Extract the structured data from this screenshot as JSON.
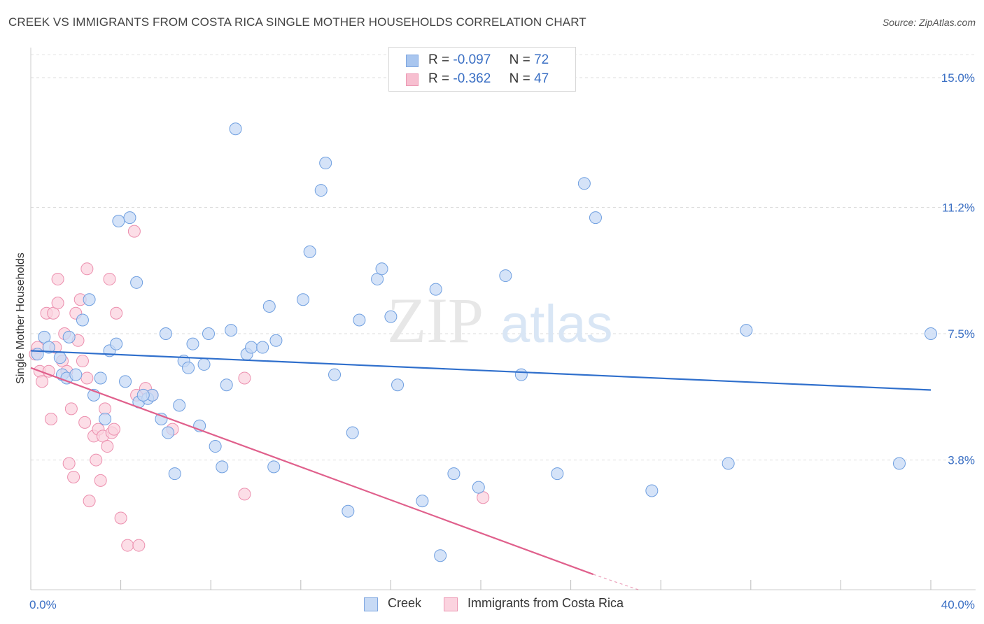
{
  "title": "CREEK VS IMMIGRANTS FROM COSTA RICA SINGLE MOTHER HOUSEHOLDS CORRELATION CHART",
  "source": "Source: ZipAtlas.com",
  "watermark": {
    "zip": "ZIP",
    "atlas": "atlas"
  },
  "legend": {
    "r_label": "R =",
    "n_label": "N =",
    "rows": [
      {
        "r": "-0.097",
        "n": "72",
        "color": "#a9c6ef",
        "border": "#7ea6e0"
      },
      {
        "r": "-0.362",
        "n": "47",
        "color": "#f7bfd0",
        "border": "#ec98b3"
      }
    ]
  },
  "bottom_legend": [
    {
      "label": "Creek",
      "color": "#c7daf5",
      "border": "#7ea6e0"
    },
    {
      "label": "Immigrants from Costa Rica",
      "color": "#fbd3df",
      "border": "#ec98b3"
    }
  ],
  "chart_data": {
    "type": "scatter",
    "title": "CREEK VS IMMIGRANTS FROM COSTA RICA SINGLE MOTHER HOUSEHOLDS CORRELATION CHART",
    "xlabel": "",
    "ylabel": "Single Mother Households",
    "xlim": [
      0,
      40
    ],
    "ylim": [
      0,
      15.8
    ],
    "x_tick_labels": [
      "0.0%",
      "40.0%"
    ],
    "y_ticks": [
      3.8,
      7.5,
      11.2,
      15.0
    ],
    "y_tick_labels": [
      "3.8%",
      "7.5%",
      "11.2%",
      "15.0%"
    ],
    "grid": true,
    "legend_position": "top-center",
    "series": [
      {
        "name": "Creek",
        "color": "#6f9fe0",
        "fill": "#c7daf5",
        "line_color": "#2f6fcc",
        "trend": {
          "x": [
            0,
            40
          ],
          "y": [
            7.0,
            5.85
          ]
        },
        "points": [
          [
            0.3,
            6.9
          ],
          [
            0.6,
            7.4
          ],
          [
            0.8,
            7.1
          ],
          [
            1.3,
            6.8
          ],
          [
            1.4,
            6.3
          ],
          [
            1.6,
            6.2
          ],
          [
            1.7,
            7.4
          ],
          [
            2.0,
            6.3
          ],
          [
            2.3,
            7.9
          ],
          [
            2.6,
            8.5
          ],
          [
            2.8,
            5.7
          ],
          [
            3.1,
            6.2
          ],
          [
            3.3,
            5.0
          ],
          [
            3.5,
            7.0
          ],
          [
            3.8,
            7.2
          ],
          [
            4.2,
            6.1
          ],
          [
            3.9,
            10.8
          ],
          [
            4.4,
            10.9
          ],
          [
            4.7,
            9.0
          ],
          [
            4.8,
            5.5
          ],
          [
            5.2,
            5.6
          ],
          [
            5.4,
            5.7
          ],
          [
            5.8,
            5.0
          ],
          [
            6.0,
            7.5
          ],
          [
            6.1,
            4.6
          ],
          [
            6.4,
            3.4
          ],
          [
            6.6,
            5.4
          ],
          [
            6.8,
            6.7
          ],
          [
            7.0,
            6.5
          ],
          [
            7.2,
            7.2
          ],
          [
            7.5,
            4.8
          ],
          [
            7.7,
            6.6
          ],
          [
            7.9,
            7.5
          ],
          [
            8.2,
            4.2
          ],
          [
            8.5,
            3.6
          ],
          [
            8.7,
            6.0
          ],
          [
            8.9,
            7.6
          ],
          [
            9.1,
            13.5
          ],
          [
            9.6,
            6.9
          ],
          [
            9.8,
            7.1
          ],
          [
            10.3,
            7.1
          ],
          [
            10.6,
            8.3
          ],
          [
            10.8,
            3.6
          ],
          [
            10.9,
            7.3
          ],
          [
            12.4,
            9.9
          ],
          [
            12.9,
            11.7
          ],
          [
            13.1,
            12.5
          ],
          [
            13.5,
            6.3
          ],
          [
            14.3,
            4.6
          ],
          [
            14.6,
            7.9
          ],
          [
            15.4,
            9.1
          ],
          [
            15.6,
            9.4
          ],
          [
            16.0,
            8.0
          ],
          [
            16.3,
            6.0
          ],
          [
            14.1,
            2.3
          ],
          [
            17.4,
            2.6
          ],
          [
            18.0,
            8.8
          ],
          [
            18.2,
            1.0
          ],
          [
            18.8,
            3.4
          ],
          [
            19.9,
            3.0
          ],
          [
            21.1,
            9.2
          ],
          [
            21.8,
            6.3
          ],
          [
            23.4,
            3.4
          ],
          [
            24.6,
            11.9
          ],
          [
            25.1,
            10.9
          ],
          [
            27.6,
            2.9
          ],
          [
            31.0,
            3.7
          ],
          [
            31.8,
            7.6
          ],
          [
            38.6,
            3.7
          ],
          [
            40.0,
            7.5
          ],
          [
            12.1,
            8.5
          ],
          [
            5.0,
            5.7
          ]
        ]
      },
      {
        "name": "Immigrants from Costa Rica",
        "color": "#ec8fae",
        "fill": "#fbd3df",
        "line_color": "#e0608c",
        "trend": {
          "x": [
            0,
            25
          ],
          "y": [
            6.5,
            0.45
          ]
        },
        "trend_dashed": {
          "x": [
            25,
            27
          ],
          "y": [
            0.45,
            0.0
          ]
        },
        "points": [
          [
            0.2,
            6.9
          ],
          [
            0.3,
            7.1
          ],
          [
            0.4,
            6.4
          ],
          [
            0.5,
            6.1
          ],
          [
            0.7,
            8.1
          ],
          [
            0.8,
            6.4
          ],
          [
            0.9,
            5.0
          ],
          [
            1.0,
            8.1
          ],
          [
            1.1,
            7.1
          ],
          [
            1.2,
            8.4
          ],
          [
            1.2,
            9.1
          ],
          [
            1.4,
            6.7
          ],
          [
            1.5,
            7.5
          ],
          [
            1.6,
            6.4
          ],
          [
            1.7,
            3.7
          ],
          [
            1.8,
            5.3
          ],
          [
            1.9,
            3.3
          ],
          [
            2.0,
            8.1
          ],
          [
            2.1,
            7.3
          ],
          [
            2.2,
            8.5
          ],
          [
            2.3,
            6.7
          ],
          [
            2.4,
            4.9
          ],
          [
            2.5,
            6.2
          ],
          [
            2.5,
            9.4
          ],
          [
            2.6,
            2.6
          ],
          [
            2.8,
            4.5
          ],
          [
            2.9,
            3.8
          ],
          [
            3.0,
            4.7
          ],
          [
            3.1,
            3.2
          ],
          [
            3.2,
            4.5
          ],
          [
            3.3,
            5.3
          ],
          [
            3.4,
            4.2
          ],
          [
            3.5,
            9.1
          ],
          [
            3.6,
            4.6
          ],
          [
            3.7,
            4.7
          ],
          [
            3.8,
            8.1
          ],
          [
            4.0,
            2.1
          ],
          [
            4.3,
            1.3
          ],
          [
            4.6,
            10.5
          ],
          [
            4.7,
            5.7
          ],
          [
            4.8,
            1.3
          ],
          [
            5.1,
            5.9
          ],
          [
            5.4,
            5.7
          ],
          [
            6.3,
            4.7
          ],
          [
            9.5,
            6.2
          ],
          [
            9.5,
            2.8
          ],
          [
            20.1,
            2.7
          ]
        ]
      }
    ]
  }
}
